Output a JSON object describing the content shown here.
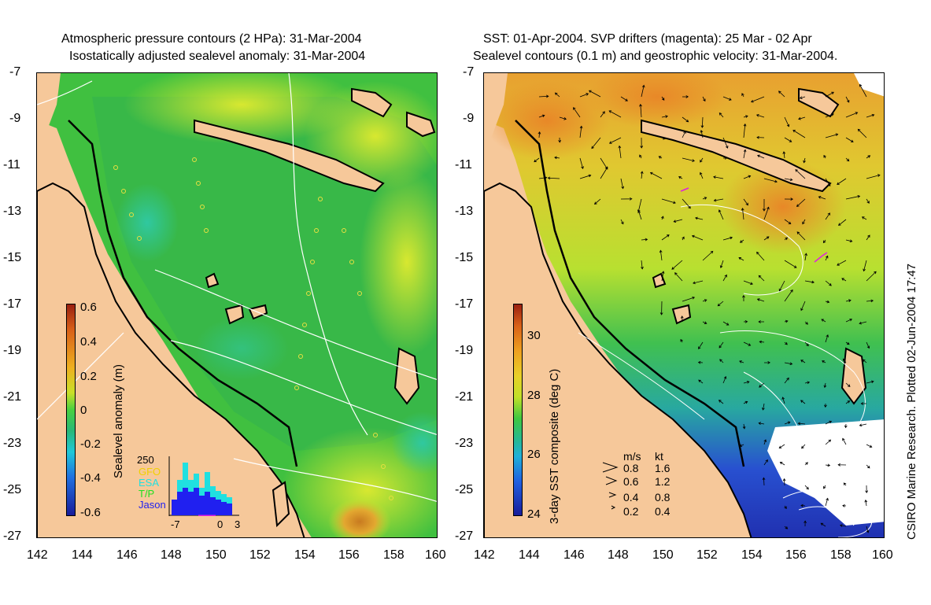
{
  "left_panel": {
    "title_line1": "Atmospheric pressure contours (2 HPa): 31-Mar-2004",
    "title_line2": "Isostatically adjusted sealevel anomaly: 31-Mar-2004",
    "colorbar": {
      "label": "Sealevel anomaly (m)",
      "ticks": [
        "0.6",
        "0.4",
        "0.2",
        "0",
        "-0.2",
        "-0.4",
        "-0.6"
      ],
      "range": [
        -0.6,
        0.6
      ]
    },
    "histogram": {
      "ymax_label": "250",
      "xticks": [
        "-7",
        "0",
        "3"
      ],
      "satellites": [
        {
          "name": "GFO",
          "color": "#f0d000"
        },
        {
          "name": "ESA",
          "color": "#20e0e0"
        },
        {
          "name": "T/P",
          "color": "#20e020"
        },
        {
          "name": "Jason",
          "color": "#2020f0"
        }
      ]
    }
  },
  "right_panel": {
    "title_line1": "SST: 01-Apr-2004. SVP drifters (magenta): 25 Mar - 02 Apr",
    "title_line2": "Sealevel contours (0.1 m) and geostrophic velocity: 31-Mar-2004.",
    "colorbar": {
      "label": "3-day SST composite (deg C)",
      "ticks": [
        "30",
        "28",
        "26",
        "24"
      ],
      "range": [
        24,
        31
      ]
    },
    "velocity_legend": {
      "header_ms": "m/s",
      "header_kt": "kt",
      "rows": [
        {
          "ms": "0.8",
          "kt": "1.6"
        },
        {
          "ms": "0.6",
          "kt": "1.2"
        },
        {
          "ms": "0.4",
          "kt": "0.8"
        },
        {
          "ms": "0.2",
          "kt": "0.4"
        }
      ]
    }
  },
  "axes": {
    "x_ticks": [
      "142",
      "144",
      "146",
      "148",
      "150",
      "152",
      "154",
      "156",
      "158",
      "160"
    ],
    "y_ticks": [
      "-7",
      "-9",
      "-11",
      "-13",
      "-15",
      "-17",
      "-19",
      "-21",
      "-23",
      "-25",
      "-27"
    ],
    "x_range": [
      142,
      160
    ],
    "y_range": [
      -27,
      -7
    ]
  },
  "credit": "CSIRO Marine Research. Plotted 02-Jun-2004 17:47",
  "colors": {
    "land": "#f6c89a",
    "coast": "#000000",
    "contour": "#ffffff"
  }
}
